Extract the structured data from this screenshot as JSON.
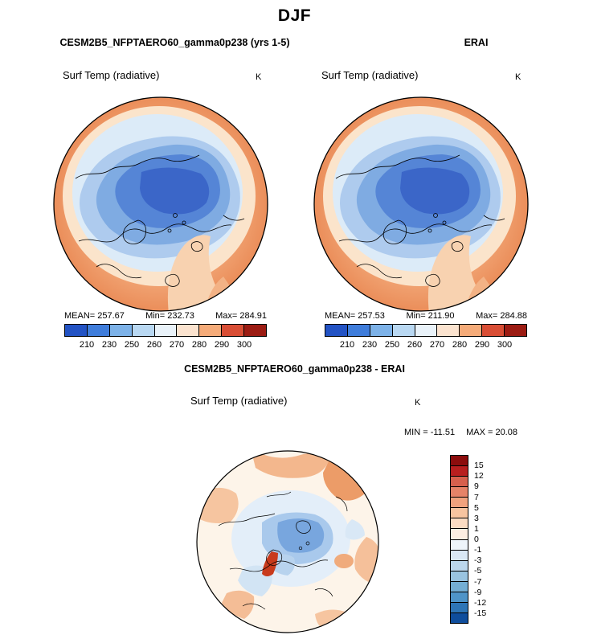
{
  "title": "DJF",
  "panels": {
    "model": {
      "header": "CESM2B5_NFPTAERO60_gamma0p238 (yrs 1-5)",
      "subtitle": "Surf Temp (radiative)",
      "units": "K",
      "stats": {
        "mean": "MEAN=  257.67",
        "min": "Min=  232.73",
        "max": "Max=  284.91"
      }
    },
    "erai": {
      "header": "ERAI",
      "subtitle": "Surf Temp (radiative)",
      "units": "K",
      "stats": {
        "mean": "MEAN=  257.53",
        "min": "Min=  211.90",
        "max": "Max=  284.88"
      }
    },
    "diff": {
      "header": "CESM2B5_NFPTAERO60_gamma0p238 - ERAI",
      "subtitle": "Surf Temp (radiative)",
      "units": "K",
      "stats": {
        "min": "MIN = -11.51",
        "max": "MAX =  20.08"
      }
    }
  },
  "colorbar_temp": {
    "ticks": [
      "210",
      "230",
      "250",
      "260",
      "270",
      "280",
      "290",
      "300"
    ],
    "colors": [
      "#2353c4",
      "#3f7ddb",
      "#7db2e8",
      "#b9d8f2",
      "#e9f2f9",
      "#fbe3cf",
      "#f5ab79",
      "#d94e35",
      "#9c1c13"
    ]
  },
  "colorbar_diff": {
    "ticks": [
      "15",
      "12",
      "9",
      "7",
      "5",
      "3",
      "1",
      "0",
      "-1",
      "-3",
      "-5",
      "-7",
      "-9",
      "-12",
      "-15"
    ],
    "colors": [
      "#8c0d0d",
      "#b81f1f",
      "#d6604d",
      "#e58368",
      "#f0a27e",
      "#f7c4a0",
      "#fbdcc3",
      "#fdeee2",
      "#eef4fa",
      "#d9e8f5",
      "#bcd7ec",
      "#9ac4e0",
      "#74aed4",
      "#4f94c8",
      "#2e75b6",
      "#0f4d9c"
    ]
  },
  "chart_data": [
    {
      "type": "heatmap",
      "title": "CESM2B5_NFPTAERO60_gamma0p238 (yrs 1-5)",
      "season": "DJF",
      "variable": "Surf Temp (radiative)",
      "units": "K",
      "projection": "north-polar-stereographic",
      "stats": {
        "mean": 257.67,
        "min": 232.73,
        "max": 284.91
      },
      "contour_levels": [
        210,
        230,
        250,
        260,
        270,
        280,
        290,
        300
      ],
      "legend_position": "bottom"
    },
    {
      "type": "heatmap",
      "title": "ERAI",
      "season": "DJF",
      "variable": "Surf Temp (radiative)",
      "units": "K",
      "projection": "north-polar-stereographic",
      "stats": {
        "mean": 257.53,
        "min": 211.9,
        "max": 284.88
      },
      "contour_levels": [
        210,
        230,
        250,
        260,
        270,
        280,
        290,
        300
      ],
      "legend_position": "bottom"
    },
    {
      "type": "heatmap",
      "title": "CESM2B5_NFPTAERO60_gamma0p238 - ERAI",
      "season": "DJF",
      "variable": "Surf Temp (radiative)",
      "units": "K",
      "projection": "north-polar-stereographic",
      "stats": {
        "min": -11.51,
        "max": 20.08
      },
      "contour_levels": [
        -15,
        -12,
        -9,
        -7,
        -5,
        -3,
        -1,
        0,
        1,
        3,
        5,
        7,
        9,
        12,
        15
      ],
      "legend_position": "right"
    }
  ]
}
